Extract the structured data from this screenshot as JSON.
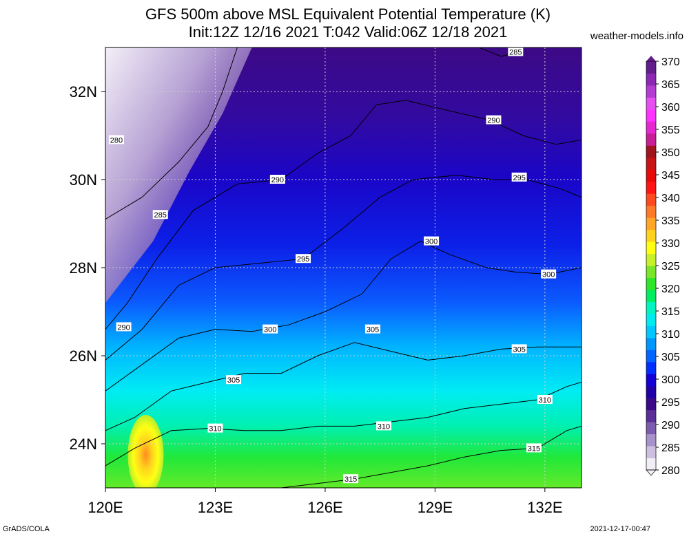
{
  "header": {
    "title_line1": "GFS 500m above MSL Equivalent Potential Temperature (K)",
    "title_line2": "Init:12Z 12/16 2021 T:042 Valid:06Z 12/18 2021",
    "site": "weather-models.info"
  },
  "footer": {
    "left": "GrADS/COLA",
    "right": "2021-12-17-00:47"
  },
  "chart_data": {
    "type": "heatmap",
    "xlabel": "",
    "ylabel": "",
    "xlim": [
      120,
      133
    ],
    "ylim": [
      23,
      33
    ],
    "x_ticks": [
      "120E",
      "123E",
      "126E",
      "129E",
      "132E"
    ],
    "x_tick_values": [
      120,
      123,
      126,
      129,
      132
    ],
    "y_ticks": [
      "24N",
      "26N",
      "28N",
      "30N",
      "32N"
    ],
    "y_tick_values": [
      24,
      26,
      28,
      30,
      32
    ],
    "grid": true,
    "legend": "right",
    "colorbar": {
      "labels": [
        "280",
        "285",
        "290",
        "295",
        "300",
        "305",
        "310",
        "315",
        "320",
        "325",
        "330",
        "335",
        "340",
        "345",
        "350",
        "355",
        "360",
        "365",
        "370"
      ],
      "colors": [
        "#f2eef7",
        "#cdbfdf",
        "#a792c9",
        "#7d5cb0",
        "#5a2f9a",
        "#3a0a88",
        "#2200a8",
        "#1400d6",
        "#0030ff",
        "#0066ff",
        "#0096ff",
        "#00c8ff",
        "#00eaf0",
        "#00f5c0",
        "#00ee60",
        "#2ee62a",
        "#7ae62a",
        "#c8f02a",
        "#ffff14",
        "#ffd21e",
        "#ffa628",
        "#ff7a28",
        "#ff4a1e",
        "#ff1414",
        "#e60a0a",
        "#c81414",
        "#a0141e",
        "#c81e96",
        "#e628d2",
        "#ff32ff",
        "#e650f0",
        "#b43cd2",
        "#8c28b4",
        "#641e8c"
      ]
    },
    "contour_labels": [
      {
        "value": "285",
        "lon": 131.2,
        "lat": 32.9
      },
      {
        "value": "290",
        "lon": 130.6,
        "lat": 31.35
      },
      {
        "value": "280",
        "lon": 120.3,
        "lat": 30.9
      },
      {
        "value": "295",
        "lon": 131.3,
        "lat": 30.05
      },
      {
        "value": "290",
        "lon": 124.7,
        "lat": 30.0
      },
      {
        "value": "285",
        "lon": 121.5,
        "lat": 29.2
      },
      {
        "value": "300",
        "lon": 128.9,
        "lat": 28.6
      },
      {
        "value": "295",
        "lon": 125.4,
        "lat": 28.2
      },
      {
        "value": "300",
        "lon": 132.1,
        "lat": 27.85
      },
      {
        "value": "290",
        "lon": 120.5,
        "lat": 26.65
      },
      {
        "value": "300",
        "lon": 124.5,
        "lat": 26.6
      },
      {
        "value": "305",
        "lon": 127.3,
        "lat": 26.6
      },
      {
        "value": "305",
        "lon": 131.3,
        "lat": 26.15
      },
      {
        "value": "305",
        "lon": 123.5,
        "lat": 25.45
      },
      {
        "value": "310",
        "lon": 132.0,
        "lat": 25.0
      },
      {
        "value": "310",
        "lon": 123.0,
        "lat": 24.35
      },
      {
        "value": "310",
        "lon": 127.6,
        "lat": 24.4
      },
      {
        "value": "315",
        "lon": 131.7,
        "lat": 23.9
      },
      {
        "value": "315",
        "lon": 126.7,
        "lat": 23.2
      }
    ],
    "contour_lines": [
      {
        "value": 285,
        "points": [
          [
            120,
            29.1
          ],
          [
            121,
            29.6
          ],
          [
            122,
            30.4
          ],
          [
            122.8,
            31.2
          ],
          [
            123.2,
            32.0
          ],
          [
            123.6,
            33.0
          ]
        ]
      },
      {
        "value": 285,
        "points": [
          [
            130.2,
            33.0
          ],
          [
            130.8,
            32.8
          ],
          [
            131.4,
            32.9
          ]
        ]
      },
      {
        "value": 290,
        "points": [
          [
            120,
            26.6
          ],
          [
            120.6,
            27.2
          ],
          [
            121.4,
            28.2
          ],
          [
            122.4,
            29.3
          ],
          [
            123.6,
            29.9
          ],
          [
            124.8,
            30.0
          ],
          [
            125.8,
            30.6
          ],
          [
            126.7,
            31.0
          ],
          [
            127.4,
            31.7
          ],
          [
            128.2,
            31.8
          ],
          [
            129.2,
            31.6
          ],
          [
            130.5,
            31.35
          ],
          [
            131.4,
            31.0
          ],
          [
            132.3,
            30.8
          ],
          [
            133,
            30.9
          ]
        ]
      },
      {
        "value": 295,
        "points": [
          [
            120,
            25.9
          ],
          [
            121,
            26.6
          ],
          [
            122,
            27.6
          ],
          [
            123,
            28.0
          ],
          [
            124.2,
            28.1
          ],
          [
            125.4,
            28.2
          ],
          [
            126.5,
            28.9
          ],
          [
            127.5,
            29.6
          ],
          [
            128.4,
            30.0
          ],
          [
            129.6,
            30.1
          ],
          [
            130.6,
            30.0
          ],
          [
            131.5,
            30.0
          ],
          [
            132.4,
            29.8
          ],
          [
            133,
            29.6
          ]
        ]
      },
      {
        "value": 300,
        "points": [
          [
            120,
            25.2
          ],
          [
            121,
            25.8
          ],
          [
            122,
            26.4
          ],
          [
            123,
            26.6
          ],
          [
            124,
            26.55
          ],
          [
            125,
            26.7
          ],
          [
            126,
            27.0
          ],
          [
            127,
            27.4
          ],
          [
            127.8,
            28.2
          ],
          [
            128.6,
            28.6
          ],
          [
            129.4,
            28.3
          ],
          [
            130.4,
            28.0
          ],
          [
            131.2,
            27.9
          ],
          [
            132.1,
            27.85
          ],
          [
            133,
            28.0
          ]
        ]
      },
      {
        "value": 305,
        "points": [
          [
            120,
            24.3
          ],
          [
            120.8,
            24.6
          ],
          [
            121.8,
            25.2
          ],
          [
            122.8,
            25.4
          ],
          [
            123.8,
            25.6
          ],
          [
            124.8,
            25.6
          ],
          [
            125.8,
            26.0
          ],
          [
            126.8,
            26.3
          ],
          [
            127.8,
            26.1
          ],
          [
            128.8,
            25.9
          ],
          [
            129.8,
            26.0
          ],
          [
            130.8,
            26.15
          ],
          [
            131.8,
            26.2
          ],
          [
            133,
            26.2
          ]
        ]
      },
      {
        "value": 310,
        "points": [
          [
            120,
            23.5
          ],
          [
            120.8,
            23.9
          ],
          [
            121.8,
            24.3
          ],
          [
            122.8,
            24.35
          ],
          [
            123.8,
            24.3
          ],
          [
            124.8,
            24.3
          ],
          [
            125.8,
            24.4
          ],
          [
            126.8,
            24.4
          ],
          [
            127.8,
            24.5
          ],
          [
            128.8,
            24.6
          ],
          [
            129.8,
            24.8
          ],
          [
            130.8,
            24.9
          ],
          [
            131.8,
            25.0
          ],
          [
            132.6,
            25.3
          ],
          [
            133,
            25.4
          ]
        ]
      },
      {
        "value": 315,
        "points": [
          [
            124.8,
            23.0
          ],
          [
            125.8,
            23.1
          ],
          [
            126.8,
            23.2
          ],
          [
            127.8,
            23.35
          ],
          [
            128.8,
            23.5
          ],
          [
            129.8,
            23.7
          ],
          [
            130.8,
            23.85
          ],
          [
            131.8,
            23.9
          ],
          [
            132.6,
            24.3
          ],
          [
            133,
            24.4
          ]
        ]
      }
    ],
    "field_bands": [
      {
        "k": 280,
        "lat_top": 33.0,
        "lat_bottom": 31.0,
        "lon_left": 120,
        "lon_right": 121.5
      },
      {
        "k": 290,
        "note": "purple north"
      },
      {
        "k": 300,
        "note": "blue middle"
      },
      {
        "k": 310,
        "note": "cyan"
      },
      {
        "k": 318,
        "note": "green south"
      }
    ]
  }
}
